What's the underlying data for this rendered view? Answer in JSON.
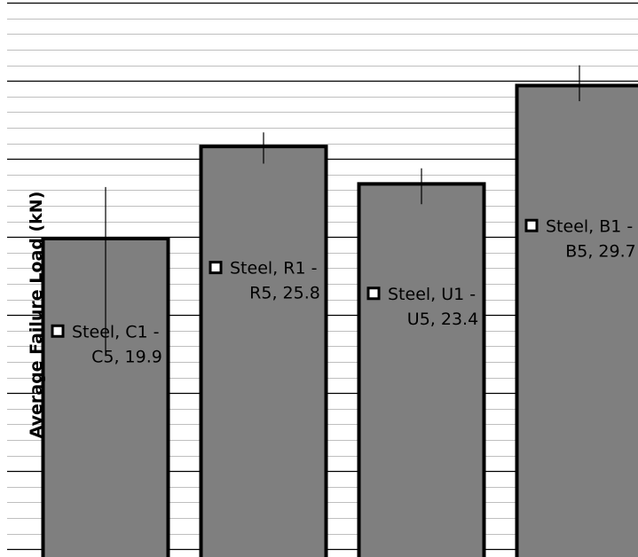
{
  "chart_data": {
    "type": "bar",
    "ylabel": "Average Failure Load (kN)",
    "categories": [
      "Steel, C1 - C5",
      "Steel, R1 - R5",
      "Steel, U1 - U5",
      "Steel, B1 - B5"
    ],
    "values": [
      19.9,
      25.8,
      23.4,
      29.7
    ],
    "error_low": [
      12.7,
      24.7,
      22.1,
      28.7
    ],
    "error_high": [
      23.2,
      26.7,
      24.4,
      31.0
    ],
    "labels": [
      [
        "Steel, C1 -",
        "C5, 19.9"
      ],
      [
        "Steel, R1 -",
        "R5, 25.8"
      ],
      [
        "Steel, U1 -",
        "U5, 23.4"
      ],
      [
        "Steel, B1 -",
        "B5, 29.7"
      ]
    ],
    "ylim": [
      -0.5,
      35
    ],
    "major_step": 5,
    "minor_step": 1,
    "grid": true,
    "bar_color": "#7f7f7f",
    "bar_border_color": "#000000",
    "legend_key_fill": "#ffffff"
  }
}
